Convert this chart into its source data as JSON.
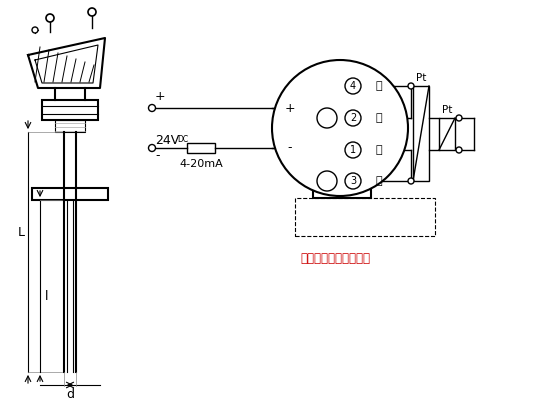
{
  "bg_color": "#ffffff",
  "line_color": "#000000",
  "red_text_color": "#cc0000",
  "label_L": "L",
  "label_l": "l",
  "label_d": "d",
  "label_plus": "+",
  "label_minus": "-",
  "label_voltage": "24V",
  "label_voltage_sub": "DC",
  "label_current": "4-20mA",
  "label_terminal_note": "热电阵：三线或四线制",
  "terminal_labels_right": [
    "白",
    "白",
    "红",
    "红"
  ],
  "terminal_numbers": [
    "4",
    "2",
    "1",
    "3"
  ],
  "label_pt1": "Pt",
  "label_pt2": "Pt"
}
